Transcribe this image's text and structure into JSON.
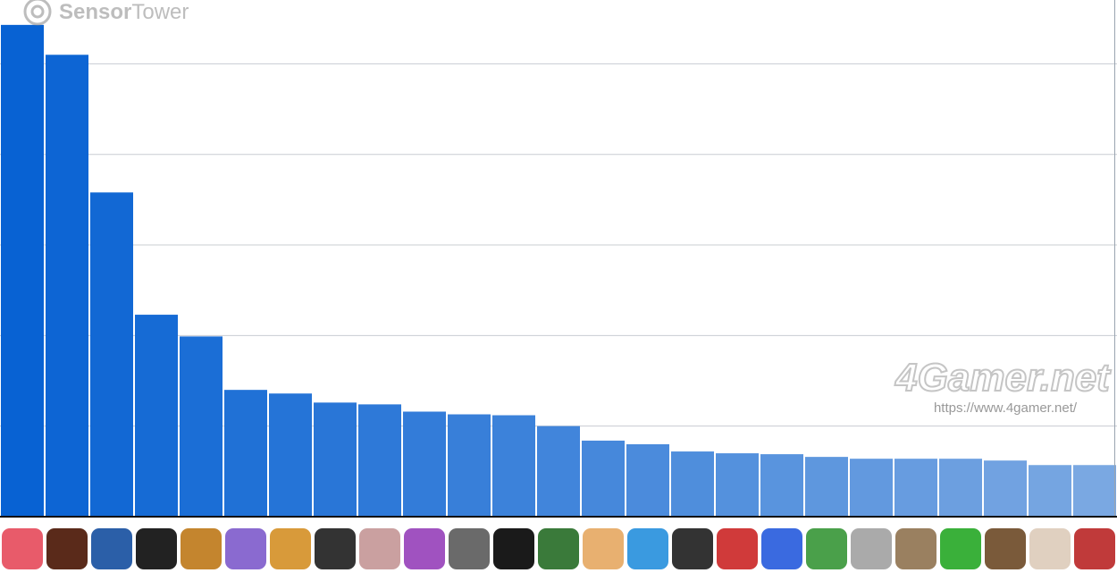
{
  "chart_data": {
    "type": "bar",
    "categories": [
      null,
      null,
      null,
      null,
      null,
      null,
      null,
      null,
      null,
      null,
      null,
      null,
      null,
      null,
      null,
      null,
      null,
      null,
      null,
      null,
      null,
      null,
      null,
      null,
      null
    ],
    "values": [
      54.3,
      51.0,
      35.8,
      22.3,
      19.9,
      14.0,
      13.6,
      12.6,
      12.4,
      11.6,
      11.3,
      11.2,
      10.0,
      8.4,
      8.0,
      7.2,
      7.0,
      6.9,
      6.6,
      6.4,
      6.4,
      6.4,
      6.2,
      5.7,
      5.7
    ],
    "color_range": [
      "#0862d3",
      "#7aa8e2"
    ],
    "ylim": [
      0,
      57
    ],
    "yticks": [
      0,
      10,
      20,
      30,
      40,
      50
    ],
    "grid": true
  },
  "watermarks": {
    "logo_bold": "Sensor",
    "logo_light": "Tower",
    "site": "4Gamer.net",
    "url": "https://www.4gamer.net/"
  }
}
